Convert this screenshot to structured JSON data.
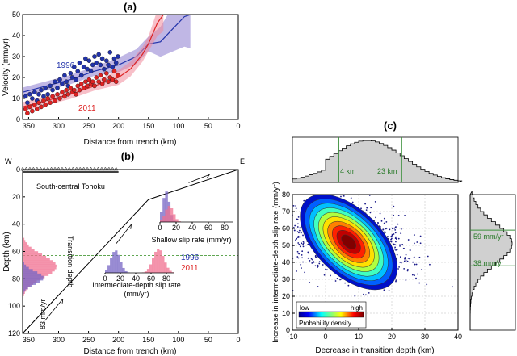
{
  "panels": {
    "a": {
      "label": "(a)"
    },
    "b": {
      "label": "(b)",
      "west": "W",
      "east": "E",
      "region": "South-central Tohoku",
      "transition": "Transition depth",
      "plate_rate": "83 mm/yr"
    },
    "c": {
      "label": "(c)"
    }
  },
  "colors": {
    "blue": "#2233aa",
    "red": "#dd2222",
    "blue_band": "#8c7ccf",
    "red_band": "#f08a9a",
    "green": "#3a8f3a",
    "gray": "#d0d0d0"
  },
  "chart_data": [
    {
      "id": "a",
      "type": "scatter",
      "title": "(a)",
      "xlabel": "Distance from trench (km)",
      "ylabel": "Velocity (mm/yr)",
      "xlim": [
        360,
        0
      ],
      "ylim": [
        0,
        50
      ],
      "xticks": [
        350,
        300,
        250,
        200,
        150,
        100,
        50,
        0
      ],
      "yticks": [
        0,
        10,
        20,
        30,
        40,
        50
      ],
      "series": [
        {
          "name": "1996",
          "color": "#2233aa",
          "points": [
            [
              355,
              11
            ],
            [
              352,
              8
            ],
            [
              348,
              12
            ],
            [
              344,
              10
            ],
            [
              340,
              13
            ],
            [
              336,
              9
            ],
            [
              333,
              12
            ],
            [
              329,
              14
            ],
            [
              325,
              11
            ],
            [
              322,
              15
            ],
            [
              318,
              12
            ],
            [
              314,
              16
            ],
            [
              310,
              14
            ],
            [
              306,
              18
            ],
            [
              302,
              15
            ],
            [
              298,
              19
            ],
            [
              294,
              17
            ],
            [
              290,
              21
            ],
            [
              287,
              18
            ],
            [
              284,
              16
            ],
            [
              280,
              22
            ],
            [
              277,
              20
            ],
            [
              274,
              25
            ],
            [
              271,
              19
            ],
            [
              268,
              23
            ],
            [
              265,
              27
            ],
            [
              262,
              21
            ],
            [
              258,
              25
            ],
            [
              255,
              29
            ],
            [
              252,
              24
            ],
            [
              249,
              28
            ],
            [
              246,
              23
            ],
            [
              243,
              26
            ],
            [
              240,
              30
            ],
            [
              237,
              27
            ],
            [
              233,
              31
            ],
            [
              230,
              26
            ],
            [
              227,
              29
            ],
            [
              224,
              24
            ],
            [
              220,
              28
            ],
            [
              217,
              26
            ],
            [
              214,
              32
            ],
            [
              210,
              25
            ],
            [
              207,
              29
            ],
            [
              204,
              27
            ],
            [
              201,
              30
            ]
          ],
          "curve": [
            [
              360,
              13
            ],
            [
              320,
              16
            ],
            [
              280,
              19
            ],
            [
              240,
              23
            ],
            [
              200,
              26
            ],
            [
              170,
              30
            ],
            [
              150,
              36
            ],
            [
              130,
              37
            ],
            [
              110,
              43
            ],
            [
              90,
              49
            ],
            [
              80,
              50
            ]
          ]
        },
        {
          "name": "2011",
          "color": "#dd2222",
          "points": [
            [
              355,
              5
            ],
            [
              352,
              3
            ],
            [
              348,
              6
            ],
            [
              344,
              4
            ],
            [
              340,
              7
            ],
            [
              336,
              5
            ],
            [
              333,
              8
            ],
            [
              329,
              6
            ],
            [
              325,
              9
            ],
            [
              322,
              7
            ],
            [
              318,
              10
            ],
            [
              314,
              8
            ],
            [
              310,
              11
            ],
            [
              306,
              9
            ],
            [
              302,
              12
            ],
            [
              298,
              10
            ],
            [
              294,
              13
            ],
            [
              290,
              11
            ],
            [
              287,
              14
            ],
            [
              284,
              12
            ],
            [
              280,
              15
            ],
            [
              277,
              13
            ],
            [
              274,
              14
            ],
            [
              271,
              12
            ],
            [
              268,
              16
            ],
            [
              265,
              14
            ],
            [
              262,
              17
            ],
            [
              258,
              15
            ],
            [
              255,
              18
            ],
            [
              252,
              16
            ],
            [
              249,
              19
            ],
            [
              246,
              17
            ],
            [
              243,
              18
            ],
            [
              240,
              16
            ],
            [
              237,
              20
            ],
            [
              233,
              18
            ],
            [
              230,
              21
            ],
            [
              227,
              17
            ],
            [
              224,
              19
            ],
            [
              220,
              22
            ],
            [
              217,
              18
            ],
            [
              214,
              20
            ],
            [
              210,
              19
            ],
            [
              207,
              23
            ],
            [
              204,
              18
            ],
            [
              201,
              21
            ]
          ],
          "curve": [
            [
              360,
              6
            ],
            [
              320,
              9
            ],
            [
              280,
              12
            ],
            [
              240,
              16
            ],
            [
              200,
              20
            ],
            [
              180,
              24
            ],
            [
              160,
              31
            ],
            [
              150,
              36
            ],
            [
              135,
              46
            ],
            [
              125,
              50
            ]
          ]
        }
      ],
      "legend": [
        {
          "label": "1996",
          "color": "#2233aa"
        },
        {
          "label": "2011",
          "color": "#dd2222"
        }
      ]
    },
    {
      "id": "b",
      "type": "line",
      "title": "(b)",
      "xlabel": "Distance from trench (km)",
      "ylabel": "Depth (km)",
      "xlim": [
        360,
        0
      ],
      "ylim": [
        120,
        0
      ],
      "xticks": [
        350,
        300,
        250,
        200,
        150,
        100,
        50,
        0
      ],
      "yticks": [
        0,
        20,
        40,
        60,
        80,
        100,
        120
      ],
      "slab": [
        [
          0,
          0
        ],
        [
          150,
          22
        ],
        [
          360,
          120
        ]
      ],
      "transition_depth": 63,
      "station_span": [
        360,
        200
      ],
      "inset_shallow": {
        "xlabel": "Shallow slip rate (mm/yr)",
        "xticks": [
          0,
          20,
          40,
          60,
          80
        ]
      },
      "inset_intermediate": {
        "xlabel": "Intermediate-depth slip rate",
        "xlabel2": "(mm/yr)",
        "xticks": [
          0,
          20,
          40,
          60,
          80
        ],
        "legend": [
          "1996",
          "2011"
        ]
      }
    },
    {
      "id": "c",
      "type": "heatmap",
      "title": "(c)",
      "xlabel": "Decrease in transition depth (km)",
      "ylabel": "Increase in intermediate-depth slip rate (mm/yr)",
      "xlim": [
        -10,
        40
      ],
      "ylim": [
        0,
        80
      ],
      "xticks": [
        -10,
        0,
        10,
        20,
        30,
        40
      ],
      "yticks": [
        0,
        10,
        20,
        30,
        40,
        50,
        60,
        70,
        80
      ],
      "peak": [
        7,
        52
      ],
      "top_marginal": {
        "lines": [
          4,
          23
        ],
        "labels": [
          "4 km",
          "23 km"
        ]
      },
      "right_marginal": {
        "lines": [
          59,
          38
        ],
        "labels": [
          "59 mm/yr",
          "38 mm/yr"
        ]
      },
      "colorbar": {
        "low": "low",
        "high": "high",
        "label": "Probability density"
      }
    }
  ]
}
